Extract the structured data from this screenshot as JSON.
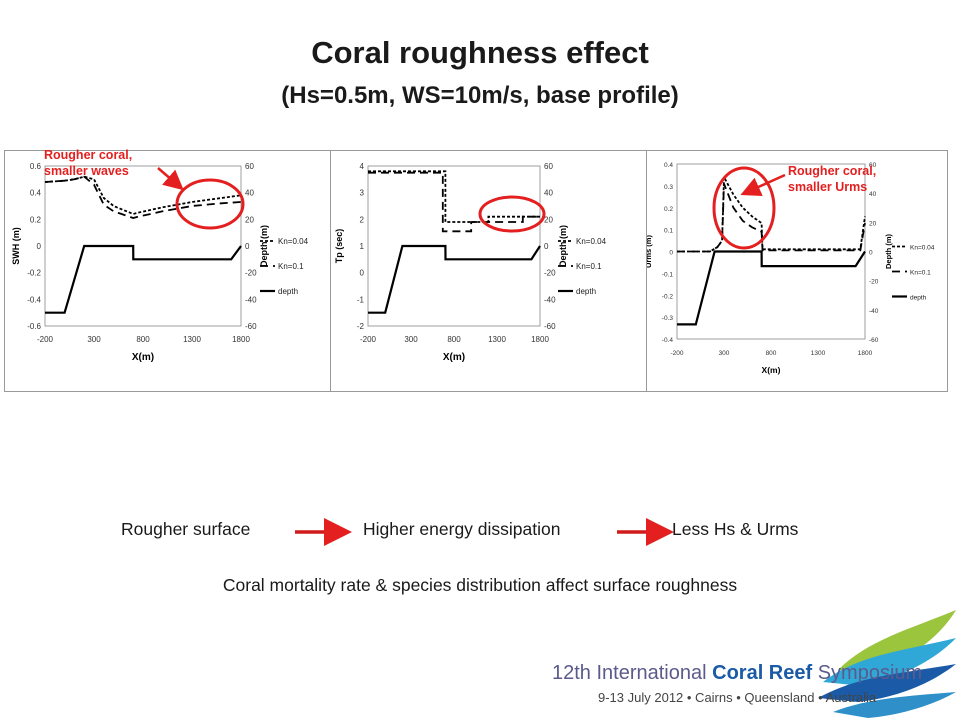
{
  "title": "Coral roughness effect",
  "subtitle": "(Hs=0.5m, WS=10m/s, base profile)",
  "annotations": {
    "left": [
      "Rougher coral,",
      "smaller waves"
    ],
    "right": [
      "Rougher coral,",
      "smaller Urms"
    ]
  },
  "flow": {
    "step1": "Rougher surface",
    "step2": "Higher energy dissipation",
    "step3": "Less Hs & Urms"
  },
  "bottom_note": "Coral mortality rate & species distribution affect surface roughness",
  "logo": {
    "line1_prefix": "12th International ",
    "line1_bold": "Coral Reef",
    "line1_suffix": " Symposium",
    "line2": "9-13 July 2012 • Cairns • Queensland • Australia"
  },
  "colors": {
    "annotation": "#e41f1f",
    "logo_blue": "#1a5aa6",
    "logo_green": "#9bc53d"
  },
  "chart_data": [
    {
      "type": "line",
      "xlabel": "X(m)",
      "ylabel": "SWH (m)",
      "y2label": "Depth (m)",
      "xticks": [
        -200,
        300,
        800,
        1300,
        1800
      ],
      "xlim": [
        -200,
        1800
      ],
      "yticks": [
        "0.6",
        "0.4",
        "0.2",
        "0",
        "-0.2",
        "-0.4",
        "-0.6"
      ],
      "ylim": [
        -0.6,
        0.6
      ],
      "y2ticks": [
        "60",
        "40",
        "20",
        "0",
        "-20",
        "-40",
        "-60"
      ],
      "y2lim": [
        -60,
        60
      ],
      "legend_labels": [
        "Kn=0.04",
        "Kn=0.1",
        "depth"
      ],
      "series": [
        {
          "name": "Kn=0.04",
          "axis": "left",
          "dash": "3,2",
          "x": [
            -200,
            0,
            100,
            200,
            300,
            400,
            500,
            700,
            750,
            1000,
            1300,
            1600,
            1800
          ],
          "y": [
            0.48,
            0.49,
            0.5,
            0.52,
            0.5,
            0.36,
            0.3,
            0.24,
            0.25,
            0.29,
            0.33,
            0.36,
            0.38
          ]
        },
        {
          "name": "Kn=0.1",
          "axis": "left",
          "dash": "8,5",
          "x": [
            -200,
            0,
            100,
            200,
            300,
            400,
            500,
            700,
            750,
            1000,
            1300,
            1600,
            1800
          ],
          "y": [
            0.48,
            0.49,
            0.5,
            0.52,
            0.46,
            0.31,
            0.26,
            0.21,
            0.22,
            0.26,
            0.3,
            0.32,
            0.33
          ]
        },
        {
          "name": "depth",
          "axis": "right",
          "dash": "",
          "x": [
            -200,
            0,
            200,
            700,
            701,
            1700,
            1800
          ],
          "y": [
            -50,
            -50,
            0,
            0,
            -10,
            -10,
            0
          ]
        }
      ]
    },
    {
      "type": "line",
      "xlabel": "X(m)",
      "ylabel": "Tp (sec)",
      "y2label": "Depth (m)",
      "xticks": [
        -200,
        300,
        800,
        1300,
        1800
      ],
      "xlim": [
        -200,
        1800
      ],
      "yticks": [
        "4",
        "3",
        "2",
        "1",
        "0",
        "-1",
        "-2"
      ],
      "ylim": [
        -2,
        4
      ],
      "y2ticks": [
        "60",
        "40",
        "20",
        "0",
        "-20",
        "-40",
        "-60"
      ],
      "y2lim": [
        -60,
        60
      ],
      "legend_labels": [
        "Kn=0.04",
        "Kn=0.1",
        "depth"
      ],
      "series": [
        {
          "name": "Kn=0.04",
          "axis": "left",
          "dash": "3,2",
          "x": [
            -200,
            700,
            700,
            1200,
            1200,
            1800
          ],
          "y": [
            3.8,
            3.8,
            1.9,
            1.9,
            2.1,
            2.1
          ]
        },
        {
          "name": "Kn=0.1",
          "axis": "left",
          "dash": "8,5",
          "x": [
            -200,
            670,
            670,
            1000,
            1000,
            1600,
            1600,
            1800
          ],
          "y": [
            3.75,
            3.75,
            1.55,
            1.55,
            1.9,
            1.9,
            2.1,
            2.1
          ]
        },
        {
          "name": "depth",
          "axis": "right",
          "dash": "",
          "x": [
            -200,
            0,
            200,
            700,
            701,
            1700,
            1800
          ],
          "y": [
            -50,
            -50,
            0,
            0,
            -10,
            -10,
            0
          ]
        }
      ]
    },
    {
      "type": "line",
      "xlabel": "X(m)",
      "ylabel": "Urms (m)",
      "y2label": "Depth (m)",
      "xticks": [
        -200,
        300,
        800,
        1300,
        1800
      ],
      "xlim": [
        -200,
        1800
      ],
      "yticks": [
        "0.4",
        "0.3",
        "0.2",
        "0.1",
        "0",
        "-0.1",
        "-0.2",
        "-0.3",
        "-0.4"
      ],
      "ylim": [
        -0.4,
        0.4
      ],
      "y2ticks": [
        "60",
        "40",
        "20",
        "0",
        "-20",
        "-40",
        "-60"
      ],
      "y2lim": [
        -60,
        60
      ],
      "legend_labels": [
        "Kn=0.04",
        "Kn=0.1",
        "depth"
      ],
      "series": [
        {
          "name": "Kn=0.04",
          "axis": "left",
          "dash": "3,2",
          "x": [
            -200,
            150,
            230,
            280,
            300,
            400,
            500,
            600,
            700,
            710,
            1300,
            1750,
            1780,
            1800
          ],
          "y": [
            0,
            0,
            0.02,
            0.05,
            0.34,
            0.26,
            0.2,
            0.16,
            0.13,
            0.01,
            0.01,
            0.01,
            0.1,
            0.16
          ]
        },
        {
          "name": "Kn=0.1",
          "axis": "left",
          "dash": "8,5",
          "x": [
            -200,
            150,
            230,
            280,
            300,
            400,
            500,
            600,
            700,
            710,
            1300,
            1750,
            1780,
            1800
          ],
          "y": [
            0,
            0,
            0.02,
            0.05,
            0.31,
            0.2,
            0.14,
            0.11,
            0.09,
            0.005,
            0.005,
            0.005,
            0.08,
            0.13
          ]
        },
        {
          "name": "depth",
          "axis": "right",
          "dash": "",
          "x": [
            -200,
            0,
            200,
            700,
            701,
            1700,
            1800
          ],
          "y": [
            -50,
            -50,
            0,
            0,
            -10,
            -10,
            0
          ]
        }
      ]
    }
  ]
}
